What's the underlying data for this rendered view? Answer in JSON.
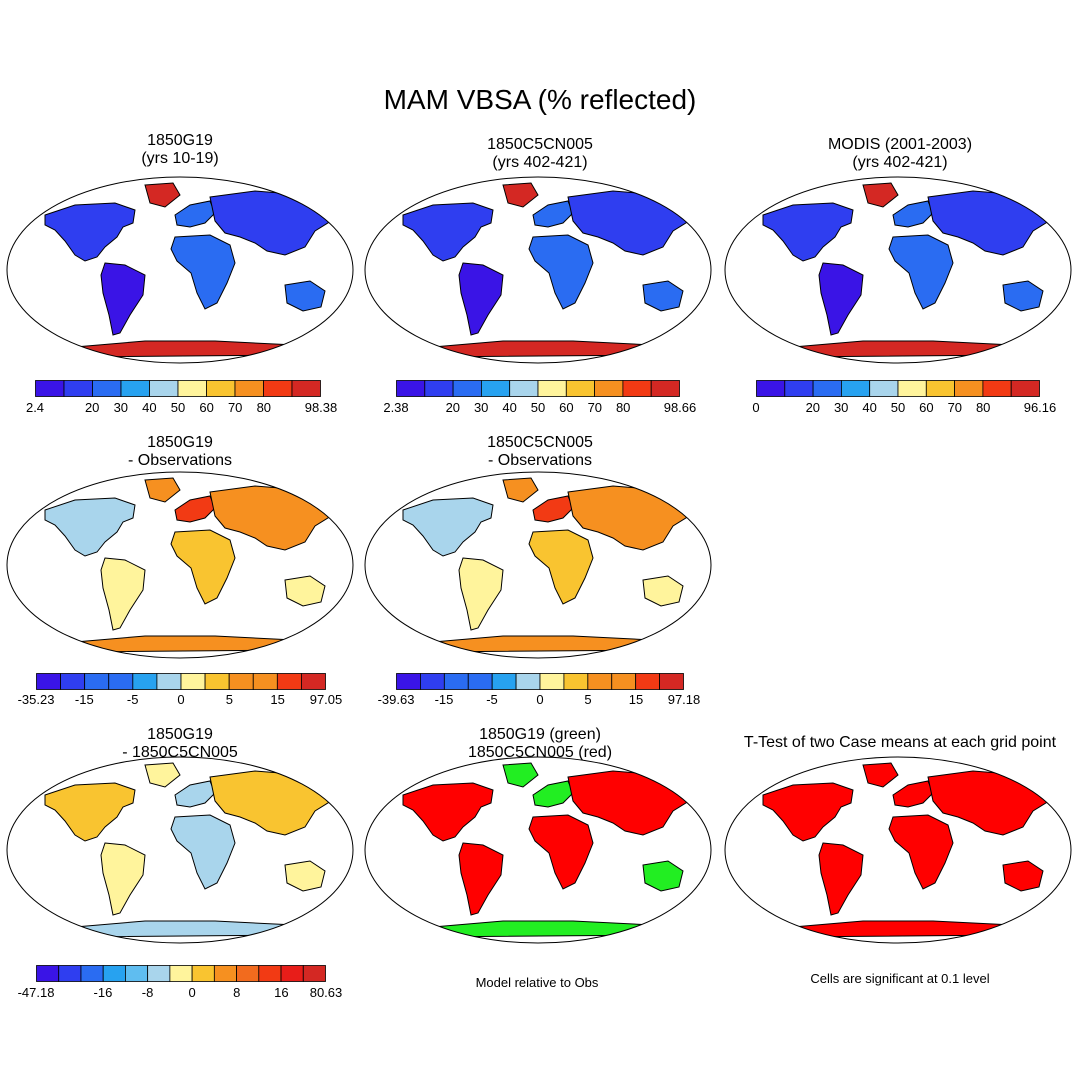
{
  "main_title": "MAM VBSA (% reflected)",
  "palettes": {
    "abs": [
      "#3a14e6",
      "#2f3ef0",
      "#2a6cf2",
      "#27a2f0",
      "#a9d5ec",
      "#fff49c",
      "#f9c430",
      "#f69020",
      "#f23a14",
      "#d42823"
    ],
    "diff": [
      "#3a14e6",
      "#2f3ef0",
      "#2a6cf2",
      "#27a2f0",
      "#5fbdf0",
      "#a9d5ec",
      "#fff49c",
      "#f9c430",
      "#f69020",
      "#f26b1e",
      "#f23a14",
      "#e81d19",
      "#d42823"
    ],
    "land_green": "#22ee22",
    "land_red": "#ff0000",
    "ocean": "#ffffff"
  },
  "panels": [
    {
      "name": "1850g19",
      "title1": "1850G19",
      "title2": "(yrs 10-19)",
      "style": "abs",
      "cbar": "cb1"
    },
    {
      "name": "1850c5cn005",
      "title1": "1850C5CN005",
      "title2": "(yrs 402-421)",
      "style": "abs",
      "cbar": "cb2"
    },
    {
      "name": "modis",
      "title1": "MODIS (2001-2003)",
      "title2": "(yrs 402-421)",
      "style": "abs",
      "cbar": "cb3"
    },
    {
      "name": "1850g19-obs",
      "title1": "1850G19",
      "title2": "- Observations",
      "style": "diffobs",
      "cbar": "cb4"
    },
    {
      "name": "1850c5cn005-obs",
      "title1": "1850C5CN005",
      "title2": "- Observations",
      "style": "diffobs",
      "cbar": "cb5"
    },
    {
      "name": "1850g19-minus-1850c5cn005",
      "title1": "1850G19",
      "title2": "- 1850C5CN005",
      "style": "diffmodel",
      "cbar": "cb6"
    },
    {
      "name": "model-relative-to-obs",
      "title1": "1850G19 (green)",
      "title2": "1850C5CN005 (red)",
      "style": "greenred",
      "caption": "Model relative to Obs"
    },
    {
      "name": "t-test",
      "title1": "T-Test of two Case means at each grid point",
      "title2": "",
      "style": "ttest",
      "caption": "Cells are significant at 0.1 level"
    }
  ],
  "colorbars": {
    "cb1": {
      "palette": "abs",
      "labels": [
        "2.4",
        "",
        "20",
        "30",
        "40",
        "50",
        "60",
        "70",
        "80",
        "",
        "98.38"
      ]
    },
    "cb2": {
      "palette": "abs",
      "labels": [
        "2.38",
        "",
        "20",
        "30",
        "40",
        "50",
        "60",
        "70",
        "80",
        "",
        "98.66"
      ]
    },
    "cb3": {
      "palette": "abs",
      "labels": [
        "0",
        "",
        "20",
        "30",
        "40",
        "50",
        "60",
        "70",
        "80",
        "",
        "96.16"
      ]
    },
    "cb4": {
      "palette": "abs",
      "labels": [
        "-35.23",
        "",
        "-15",
        "",
        "-5",
        "",
        "0",
        "",
        "5",
        "",
        "15",
        "",
        "97.05"
      ]
    },
    "cb5": {
      "palette": "abs",
      "labels": [
        "-39.63",
        "",
        "-15",
        "",
        "-5",
        "",
        "0",
        "",
        "5",
        "",
        "15",
        "",
        "97.18"
      ]
    },
    "cb6": {
      "palette": "diff",
      "labels": [
        "-47.18",
        "",
        "",
        "-16",
        "",
        "-8",
        "",
        "0",
        "",
        "8",
        "",
        "16",
        "",
        "80.63"
      ]
    }
  }
}
